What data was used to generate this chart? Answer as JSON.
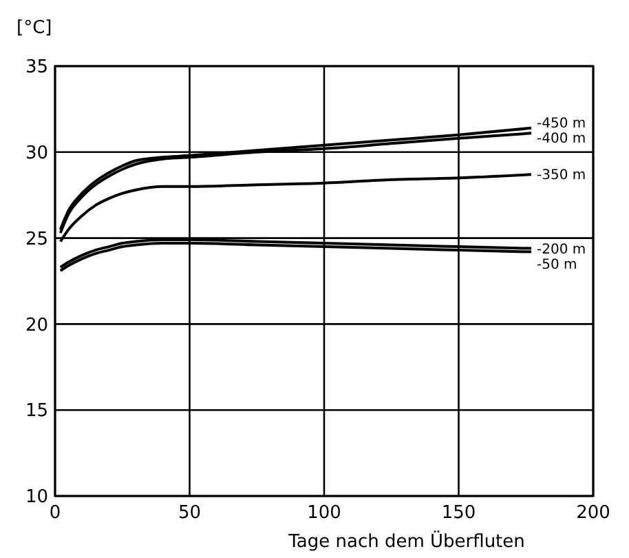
{
  "chart_data": {
    "type": "line",
    "ylabel": "[°C]",
    "xlabel": "Tage nach dem Überfluten",
    "x": [
      2,
      5,
      10,
      15,
      20,
      25,
      30,
      40,
      50,
      75,
      100,
      125,
      150,
      177
    ],
    "series": [
      {
        "name": "-450 m",
        "color": "#000000",
        "values": [
          25.5,
          26.6,
          27.6,
          28.3,
          28.8,
          29.2,
          29.5,
          29.7,
          29.8,
          30.1,
          30.4,
          30.7,
          31.0,
          31.4
        ]
      },
      {
        "name": "-400 m",
        "color": "#000000",
        "values": [
          25.3,
          26.4,
          27.4,
          28.1,
          28.6,
          29.0,
          29.3,
          29.6,
          29.7,
          30.0,
          30.2,
          30.5,
          30.8,
          31.1
        ]
      },
      {
        "name": "-350 m",
        "color": "#000000",
        "values": [
          24.8,
          25.5,
          26.3,
          26.9,
          27.3,
          27.6,
          27.8,
          28.0,
          28.0,
          28.1,
          28.2,
          28.4,
          28.5,
          28.7
        ]
      },
      {
        "name": "-200 m",
        "color": "#000000",
        "values": [
          23.3,
          23.6,
          24.0,
          24.3,
          24.5,
          24.7,
          24.8,
          24.9,
          24.9,
          24.8,
          24.7,
          24.6,
          24.5,
          24.4
        ]
      },
      {
        "name": "-50 m",
        "color": "#000000",
        "values": [
          23.1,
          23.4,
          23.8,
          24.1,
          24.3,
          24.5,
          24.6,
          24.7,
          24.7,
          24.6,
          24.5,
          24.4,
          24.3,
          24.2
        ]
      }
    ],
    "xlim": [
      0,
      200
    ],
    "xticks": [
      0,
      50,
      100,
      150,
      200
    ],
    "ylim": [
      10,
      35
    ],
    "yticks": [
      10,
      15,
      20,
      25,
      30,
      35
    ],
    "grid": true,
    "marker": "none",
    "line_style": "solid"
  }
}
